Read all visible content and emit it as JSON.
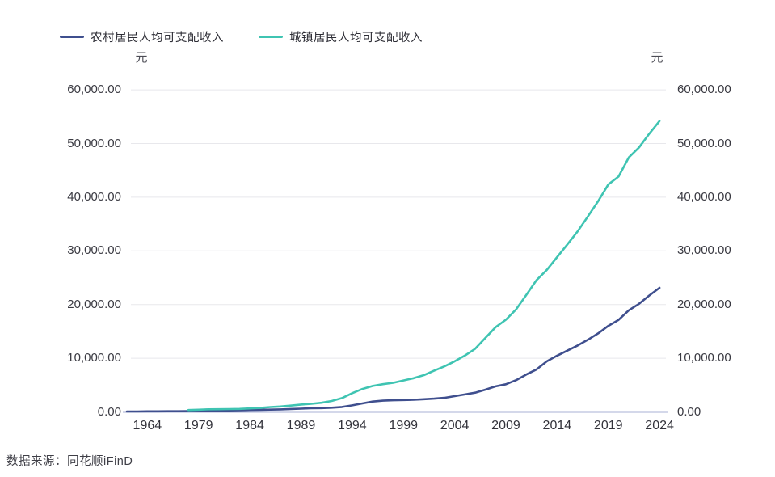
{
  "legend": {
    "items": [
      {
        "id": "rural",
        "label": "农村居民人均可支配收入",
        "color": "#3F4F8E"
      },
      {
        "id": "urban",
        "label": "城镇居民人均可支配收入",
        "color": "#3FC4B2"
      }
    ]
  },
  "axes": {
    "unit_left": "元",
    "unit_right": "元"
  },
  "footer": {
    "source": "数据来源：同花顺iFinD"
  },
  "chart_data": {
    "type": "line",
    "title": "",
    "ylabel": "元",
    "ylim": [
      0,
      60000
    ],
    "grid": "horizontal",
    "legend_position": "top-left",
    "colors": {
      "grid": "#E8E8EC",
      "axis_line": "#A9B2D6",
      "tick_text": "#3A3A42"
    },
    "y_ticks": [
      0,
      10000,
      20000,
      30000,
      40000,
      50000,
      60000
    ],
    "y_tick_labels": [
      "0.00",
      "10,000.00",
      "20,000.00",
      "30,000.00",
      "40,000.00",
      "50,000.00",
      "60,000.00"
    ],
    "x_tick_labels": [
      "1964",
      "1979",
      "1984",
      "1989",
      "1994",
      "1999",
      "2004",
      "2009",
      "2014",
      "2019",
      "2024"
    ],
    "categories": [
      "1956",
      "1957",
      "1964",
      "1965",
      "1975",
      "1977",
      "1978",
      "1979",
      "1980",
      "1981",
      "1982",
      "1983",
      "1984",
      "1985",
      "1986",
      "1987",
      "1988",
      "1989",
      "1990",
      "1991",
      "1992",
      "1993",
      "1994",
      "1995",
      "1996",
      "1997",
      "1998",
      "1999",
      "2000",
      "2001",
      "2002",
      "2003",
      "2004",
      "2005",
      "2006",
      "2007",
      "2008",
      "2009",
      "2010",
      "2011",
      "2012",
      "2013",
      "2014",
      "2015",
      "2016",
      "2017",
      "2018",
      "2019",
      "2020",
      "2021",
      "2022",
      "2023",
      "2024"
    ],
    "series": [
      {
        "id": "rural",
        "name": "农村居民人均可支配收入",
        "color": "#3F4F8E",
        "values": [
          73,
          73,
          102,
          107,
          124,
          117,
          133.6,
          160.2,
          191.3,
          223.4,
          270.1,
          309.8,
          355.3,
          397.6,
          423.8,
          462.6,
          544.9,
          601.5,
          686.3,
          708.6,
          784.0,
          921.6,
          1221.0,
          1577.7,
          1926.1,
          2090.1,
          2162.0,
          2210.3,
          2253.4,
          2366.4,
          2475.6,
          2622.2,
          2936.4,
          3254.9,
          3587.0,
          4140.4,
          4760.6,
          5153.2,
          5919.0,
          6977.3,
          7916.6,
          9429.6,
          10488.9,
          11421.7,
          12363.4,
          13432.4,
          14617.0,
          16020.7,
          17131.5,
          18930.9,
          20132.8,
          21691.1,
          23118.6
        ]
      },
      {
        "id": "urban",
        "name": "城镇居民人均可支配收入",
        "color": "#3FC4B2",
        "values": [
          null,
          null,
          null,
          null,
          null,
          null,
          343.4,
          405.0,
          477.6,
          491.9,
          526.6,
          564.0,
          651.2,
          739.1,
          899.6,
          1002.2,
          1181.4,
          1375.7,
          1510.2,
          1700.6,
          2026.6,
          2577.4,
          3496.2,
          4283.0,
          4838.9,
          5160.3,
          5425.1,
          5854.0,
          6280.0,
          6859.6,
          7702.8,
          8472.2,
          9421.6,
          10493.0,
          11759.5,
          13785.8,
          15780.8,
          17174.7,
          19109.4,
          21809.8,
          24564.7,
          26467.0,
          28843.9,
          31194.8,
          33616.2,
          36396.2,
          39250.8,
          42358.8,
          43833.8,
          47411.9,
          49282.9,
          51821.0,
          54188.0
        ]
      }
    ]
  }
}
